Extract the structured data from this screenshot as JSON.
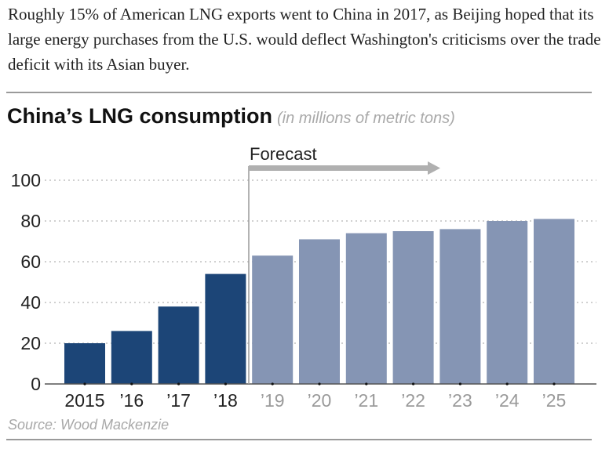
{
  "caption": "Roughly 15% of American LNG exports went to China in 2017, as Beijing hoped that its large energy purchases from the U.S. would deflect Washington's criticisms over the trade deficit with its Asian buyer.",
  "chart_data": {
    "type": "bar",
    "title": "China’s LNG consumption",
    "subtitle": "(in millions of metric tons)",
    "xlabel": "",
    "ylabel": "",
    "categories": [
      "2015",
      "’16",
      "’17",
      "’18",
      "’19",
      "’20",
      "’21",
      "’22",
      "’23",
      "’24",
      "’25"
    ],
    "values": [
      20,
      26,
      38,
      54,
      63,
      71,
      74,
      75,
      76,
      80,
      81
    ],
    "forecast_from_index": 4,
    "annotation": "Forecast",
    "ylim": [
      0,
      100
    ],
    "yticks": [
      0,
      20,
      40,
      60,
      80,
      100
    ],
    "grid": true,
    "colors": {
      "actual": "#1c4577",
      "forecast": "#8595b4",
      "actual_label": "#222222",
      "forecast_label": "#9a9a9a"
    },
    "source": "Source: Wood Mackenzie"
  }
}
